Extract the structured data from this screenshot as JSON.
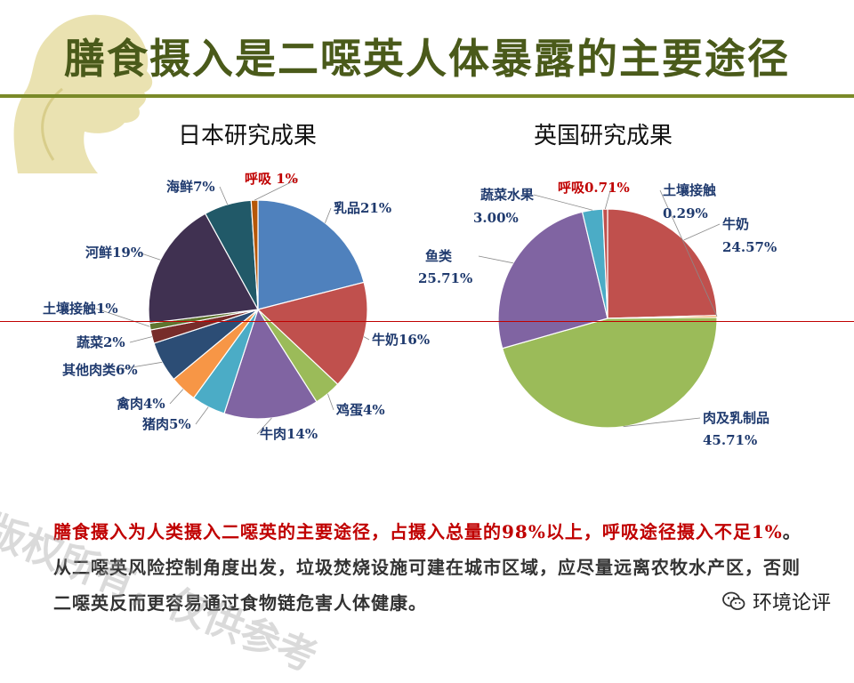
{
  "page": {
    "title": "膳食摄入是二噁英人体暴露的主要途径",
    "note_red_1": "膳食摄入为人类摄入二噁英的主要途径，占摄入总量的98%以上，呼吸途径摄入不足1%",
    "note_rest": "。从二噁英风险控制角度出发，垃圾焚烧设施可建在城市区域，应尽量远离农牧水产区，否则二噁英反而更容易通过食物链危害人体健康。",
    "watermark": "版权所有，仅供参考",
    "brand": "环境论评",
    "brand_icon": "wechat-icon"
  },
  "chart_data": [
    {
      "type": "pie",
      "title": "日本研究成果",
      "slices": [
        {
          "label": "乳品",
          "value": 21,
          "text": "乳品21%",
          "color": "#4f81bd"
        },
        {
          "label": "牛奶",
          "value": 16,
          "text": "牛奶16%",
          "color": "#c0504d"
        },
        {
          "label": "鸡蛋",
          "value": 4,
          "text": "鸡蛋4%",
          "color": "#9bbb59"
        },
        {
          "label": "牛肉",
          "value": 14,
          "text": "牛肉14%",
          "color": "#8064a2"
        },
        {
          "label": "猪肉",
          "value": 5,
          "text": "猪肉5%",
          "color": "#4bacc6"
        },
        {
          "label": "禽肉",
          "value": 4,
          "text": "禽肉4%",
          "color": "#f79646"
        },
        {
          "label": "其他肉类",
          "value": 6,
          "text": "其他肉类6%",
          "color": "#2c4d75"
        },
        {
          "label": "蔬菜",
          "value": 2,
          "text": "蔬菜2%",
          "color": "#772c2a"
        },
        {
          "label": "土壤接触",
          "value": 1,
          "text": "土壤接触1%",
          "color": "#5f7530"
        },
        {
          "label": "河鲜",
          "value": 19,
          "text": "河鲜19%",
          "color": "#403151"
        },
        {
          "label": "海鲜",
          "value": 7,
          "text": "海鲜7%",
          "color": "#215968"
        },
        {
          "label": "呼吸",
          "value": 1,
          "text": "呼吸 1%",
          "color": "#b65708",
          "highlight": true
        }
      ]
    },
    {
      "type": "pie",
      "title": "英国研究成果",
      "slices": [
        {
          "label": "牛奶",
          "value": 24.57,
          "text": "牛奶",
          "text2": "24.57%",
          "color": "#c0504d"
        },
        {
          "label": "土壤接触",
          "value": 0.29,
          "text": "土壤接触",
          "text2": "0.29%",
          "color": "#f79646"
        },
        {
          "label": "肉及乳制品",
          "value": 45.71,
          "text": "肉及乳制品",
          "text2": "45.71%",
          "color": "#9bbb59"
        },
        {
          "label": "鱼类",
          "value": 25.71,
          "text": "鱼类",
          "text2": "25.71%",
          "color": "#8064a2"
        },
        {
          "label": "蔬菜水果",
          "value": 3.0,
          "text": "蔬菜水果",
          "text2": "3.00%",
          "color": "#4bacc6"
        },
        {
          "label": "呼吸",
          "value": 0.71,
          "text": "呼吸0.71%",
          "color": "#c0504d",
          "highlight": true
        }
      ]
    }
  ]
}
